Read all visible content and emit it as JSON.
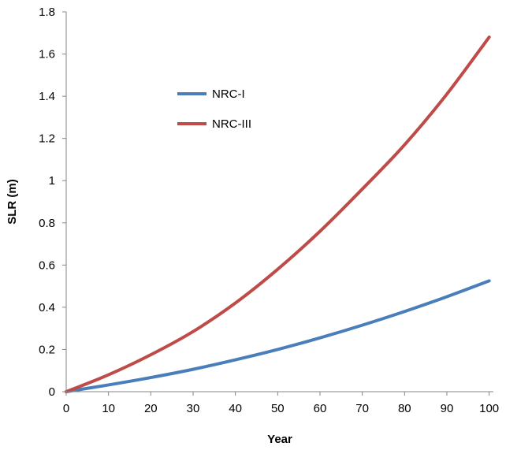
{
  "chart_data": {
    "type": "line",
    "title": "",
    "xlabel": "Year",
    "ylabel": "SLR  (m)",
    "xlim": [
      0,
      101
    ],
    "ylim": [
      0,
      1.8
    ],
    "xticks": [
      "0",
      "10",
      "20",
      "30",
      "40",
      "50",
      "60",
      "70",
      "80",
      "90",
      "100"
    ],
    "yticks": [
      "0",
      "0.2",
      "0.4",
      "0.6",
      "0.8",
      "1",
      "1.2",
      "1.4",
      "1.6",
      "1.8"
    ],
    "grid": false,
    "legend_position": "upper-left",
    "series": [
      {
        "name": "NRC-I",
        "color": "#4a7ebb",
        "x": [
          0,
          10,
          20,
          30,
          40,
          50,
          60,
          70,
          80,
          90,
          100
        ],
        "y": [
          0,
          0.032,
          0.067,
          0.106,
          0.151,
          0.2,
          0.255,
          0.315,
          0.38,
          0.45,
          0.525
        ]
      },
      {
        "name": "NRC-III",
        "color": "#be4b48",
        "x": [
          0,
          10,
          20,
          30,
          40,
          50,
          60,
          70,
          80,
          90,
          100
        ],
        "y": [
          0,
          0.08,
          0.175,
          0.285,
          0.42,
          0.58,
          0.76,
          0.96,
          1.17,
          1.41,
          1.68
        ]
      }
    ]
  }
}
